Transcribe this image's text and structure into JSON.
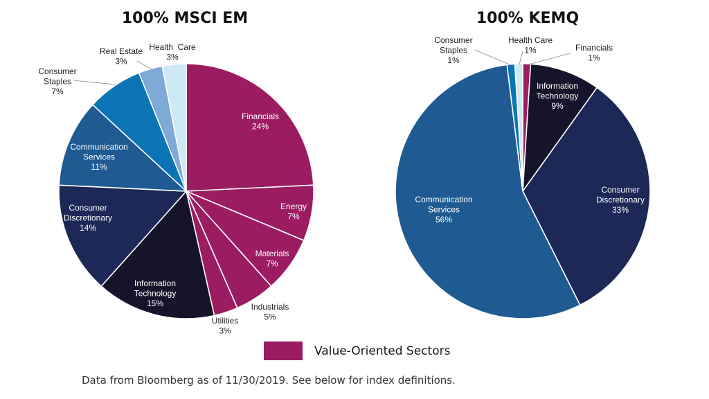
{
  "colors": {
    "value_oriented": "#9c1c62",
    "light_blue": "#cde9f6",
    "mid_blue": "#7fa9d6",
    "bright_blue": "#0b74b4",
    "steel_blue": "#1f5b92",
    "navy": "#1c2856",
    "near_black": "#15142a"
  },
  "chart_data": [
    {
      "type": "pie",
      "title": "100% MSCI EM",
      "slices": [
        {
          "label": [
            "Financials"
          ],
          "value": 24,
          "pct": "24%",
          "color": "#9c1c62"
        },
        {
          "label": [
            "Energy"
          ],
          "value": 7,
          "pct": "7%",
          "color": "#9c1c62"
        },
        {
          "label": [
            "Materials"
          ],
          "value": 7,
          "pct": "7%",
          "color": "#9c1c62"
        },
        {
          "label": [
            "Industrials"
          ],
          "value": 5,
          "pct": "5%",
          "color": "#9c1c62"
        },
        {
          "label": [
            "Utilities"
          ],
          "value": 3,
          "pct": "3%",
          "color": "#9c1c62"
        },
        {
          "label": [
            "Information",
            "Technology"
          ],
          "value": 15,
          "pct": "15%",
          "color": "#15142a"
        },
        {
          "label": [
            "Consumer",
            "Discretionary"
          ],
          "value": 14,
          "pct": "14%",
          "color": "#1c2856"
        },
        {
          "label": [
            "Communication",
            "Services"
          ],
          "value": 11,
          "pct": "11%",
          "color": "#1f5b92"
        },
        {
          "label": [
            "Consumer",
            "Staples"
          ],
          "value": 7,
          "pct": "7%",
          "color": "#0b74b4"
        },
        {
          "label": [
            "Real Estate"
          ],
          "value": 3,
          "pct": "3%",
          "color": "#7fa9d6"
        },
        {
          "label": [
            "Health  Care"
          ],
          "value": 3,
          "pct": "3%",
          "color": "#cde9f6"
        }
      ]
    },
    {
      "type": "pie",
      "title": "100% KEMQ",
      "slices": [
        {
          "label": [
            "Financials"
          ],
          "value": 1,
          "pct": "1%",
          "color": "#9c1c62"
        },
        {
          "label": [
            "Information",
            "Technology"
          ],
          "value": 9,
          "pct": "9%",
          "color": "#15142a"
        },
        {
          "label": [
            "Consumer",
            "Discretionary"
          ],
          "value": 33,
          "pct": "33%",
          "color": "#1c2856"
        },
        {
          "label": [
            "Communication",
            "Services"
          ],
          "value": 56,
          "pct": "56%",
          "color": "#1f5b92"
        },
        {
          "label": [
            "Consumer",
            "Staples"
          ],
          "value": 1,
          "pct": "1%",
          "color": "#0b74b4"
        },
        {
          "label": [
            "Health Care"
          ],
          "value": 1,
          "pct": "1%",
          "color": "#cde9f6"
        }
      ]
    }
  ],
  "legend": {
    "label": "Value-Oriented Sectors",
    "color": "#9c1c62"
  },
  "footnote": "Data from Bloomberg as of 11/30/2019.  See below for index definitions."
}
